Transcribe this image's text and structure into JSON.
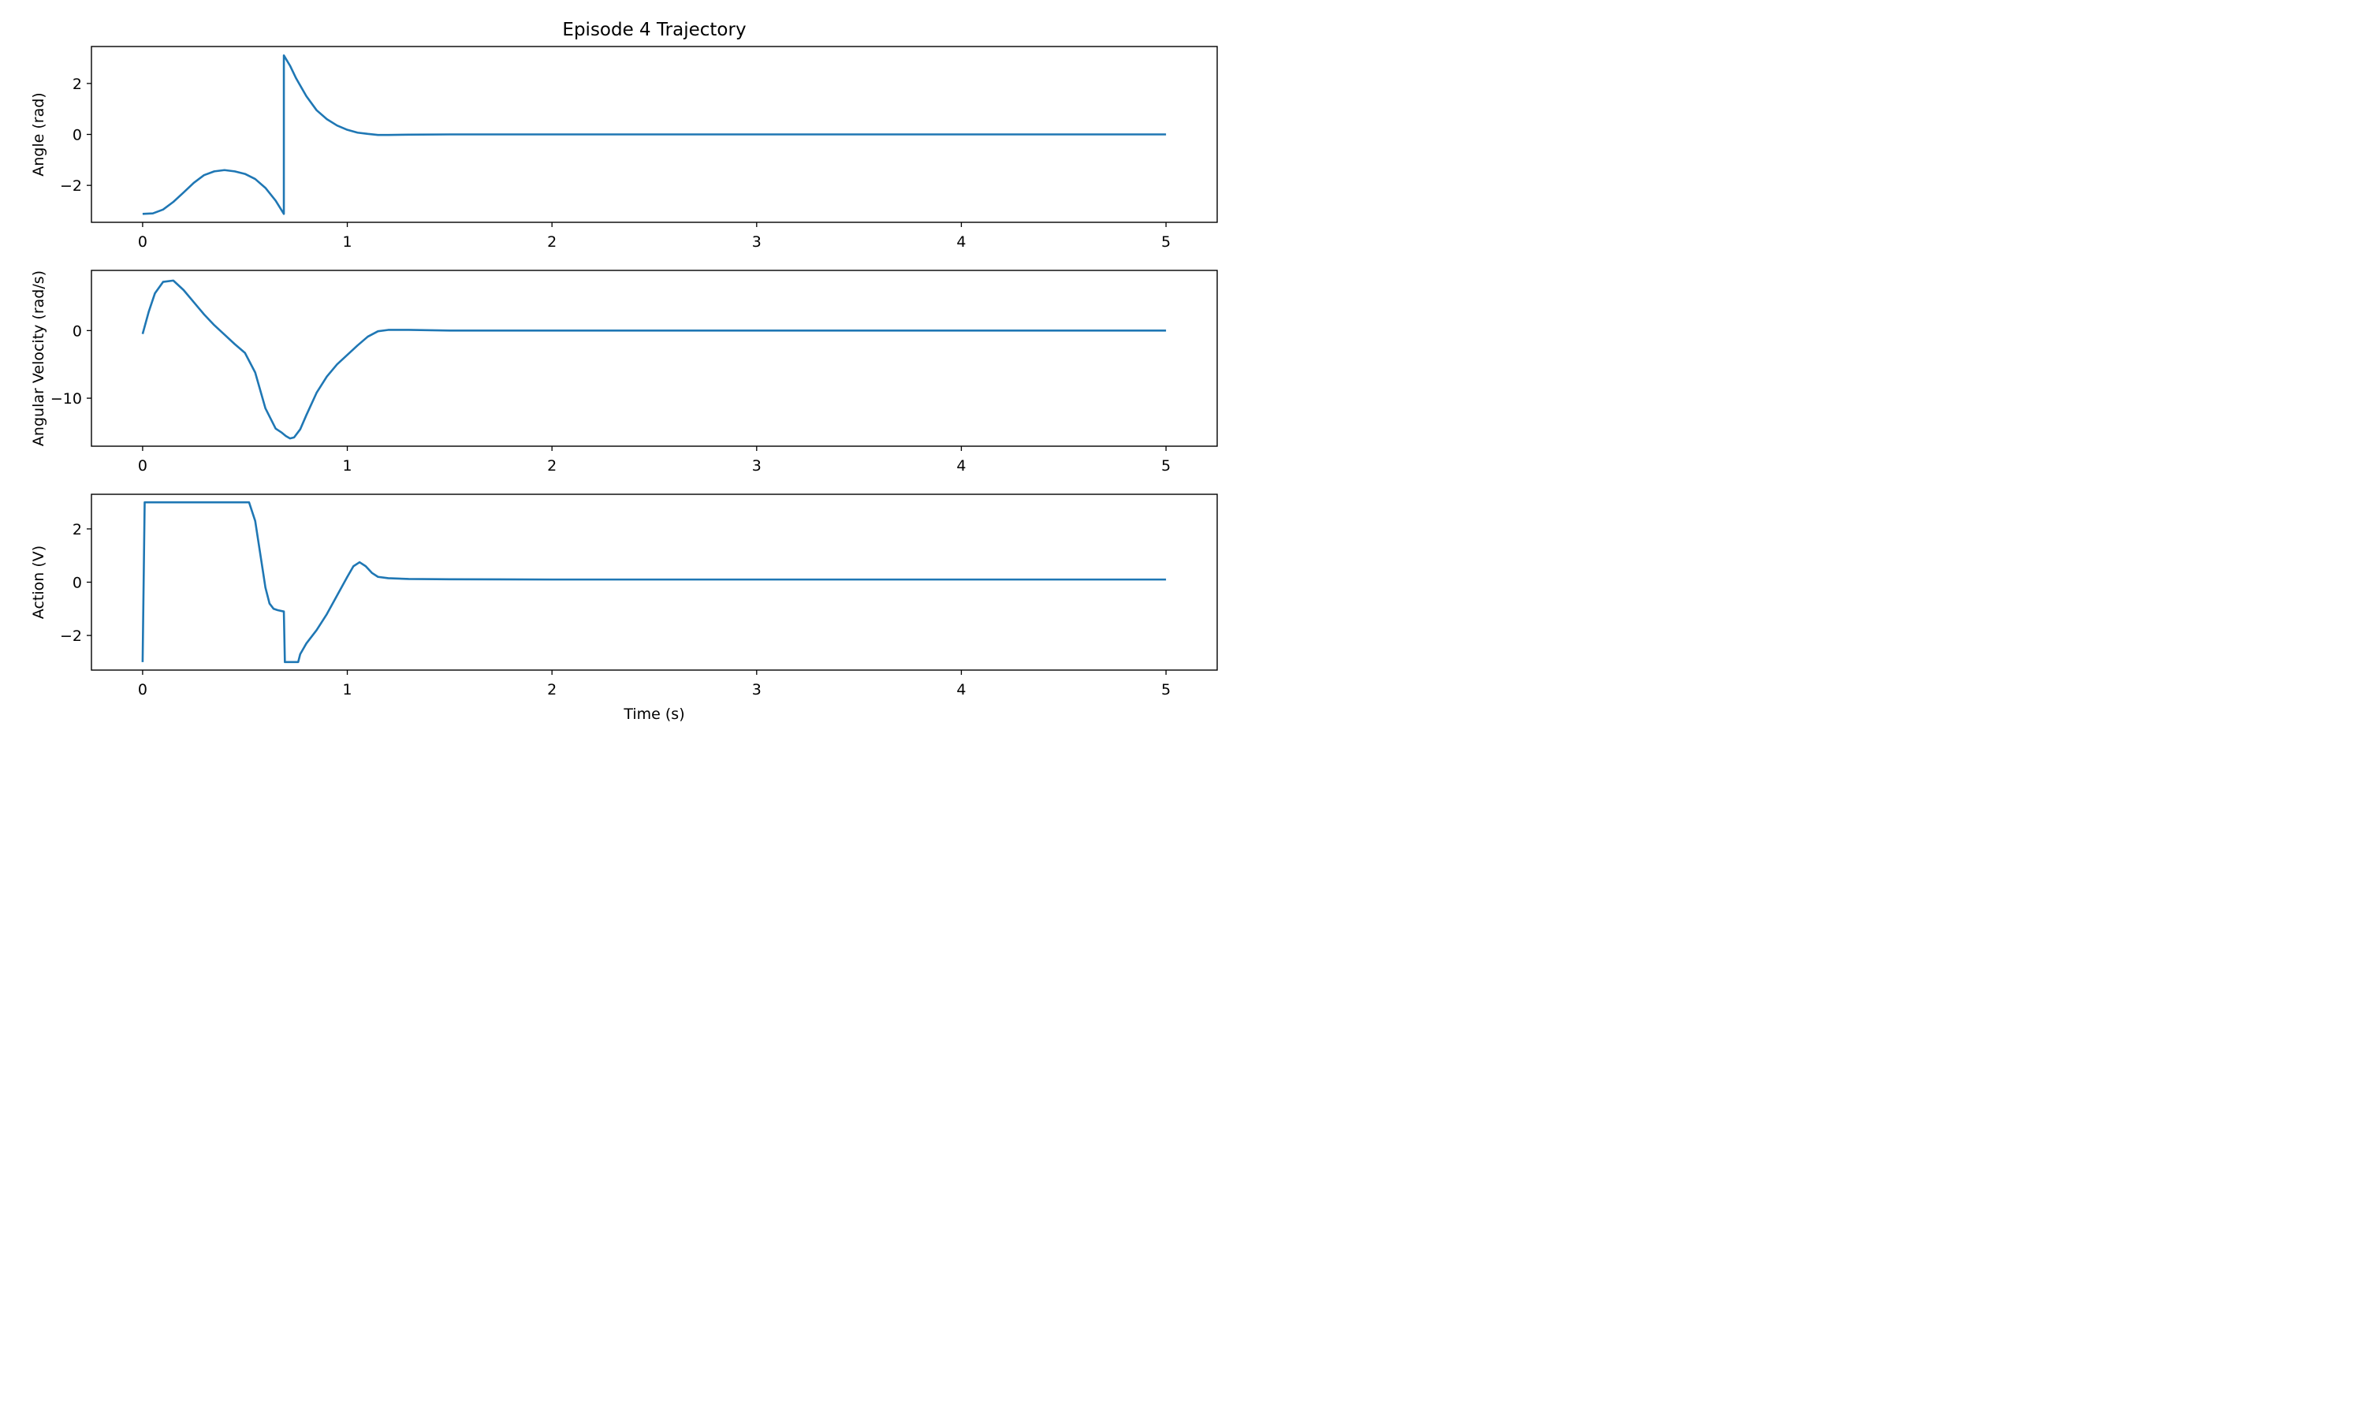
{
  "chart_data": {
    "type": "line",
    "title": "Episode 4 Trajectory",
    "xlabel": "Time (s)",
    "line_color": "#1f77b4",
    "subplots": [
      {
        "id": "angle",
        "ylabel": "Angle (rad)",
        "xlim": [
          -0.25,
          5.25
        ],
        "ylim": [
          -3.45,
          3.45
        ],
        "x_ticks": [
          0,
          1,
          2,
          3,
          4,
          5
        ],
        "x_tick_labels": [
          "0",
          "1",
          "2",
          "3",
          "4",
          "5"
        ],
        "y_ticks": [
          -2,
          0,
          2
        ],
        "y_tick_labels": [
          "−2",
          "0",
          "2"
        ],
        "series": [
          {
            "name": "Angle",
            "x": [
              0,
              0.05,
              0.1,
              0.15,
              0.2,
              0.25,
              0.3,
              0.35,
              0.4,
              0.45,
              0.5,
              0.55,
              0.6,
              0.65,
              0.69,
              0.6901,
              0.72,
              0.75,
              0.8,
              0.85,
              0.9,
              0.95,
              1.0,
              1.05,
              1.1,
              1.15,
              1.2,
              1.3,
              1.5,
              2,
              3,
              4,
              5
            ],
            "y": [
              -3.12,
              -3.1,
              -2.95,
              -2.65,
              -2.28,
              -1.9,
              -1.6,
              -1.45,
              -1.4,
              -1.45,
              -1.55,
              -1.75,
              -2.1,
              -2.6,
              -3.12,
              3.1,
              2.7,
              2.2,
              1.5,
              0.95,
              0.6,
              0.35,
              0.18,
              0.07,
              0.02,
              -0.02,
              -0.02,
              -0.01,
              0,
              0,
              0,
              0,
              0
            ]
          }
        ]
      },
      {
        "id": "angular-velocity",
        "ylabel": "Angular Velocity (rad/s)",
        "xlim": [
          -0.25,
          5.25
        ],
        "ylim": [
          -17.1,
          8.9
        ],
        "x_ticks": [
          0,
          1,
          2,
          3,
          4,
          5
        ],
        "x_tick_labels": [
          "0",
          "1",
          "2",
          "3",
          "4",
          "5"
        ],
        "y_ticks": [
          -10,
          0
        ],
        "y_tick_labels": [
          "−10",
          "0"
        ],
        "series": [
          {
            "name": "Angular Velocity",
            "x": [
              0,
              0.03,
              0.06,
              0.1,
              0.15,
              0.2,
              0.25,
              0.3,
              0.35,
              0.4,
              0.45,
              0.5,
              0.55,
              0.6,
              0.65,
              0.68,
              0.7,
              0.72,
              0.74,
              0.77,
              0.8,
              0.85,
              0.9,
              0.95,
              1.0,
              1.05,
              1.1,
              1.15,
              1.2,
              1.3,
              1.5,
              2,
              3,
              4,
              5
            ],
            "y": [
              -0.5,
              2.8,
              5.5,
              7.2,
              7.4,
              6.0,
              4.2,
              2.4,
              0.8,
              -0.6,
              -2.0,
              -3.3,
              -6.2,
              -11.5,
              -14.5,
              -15.1,
              -15.6,
              -15.95,
              -15.8,
              -14.6,
              -12.5,
              -9.2,
              -6.8,
              -5.0,
              -3.6,
              -2.2,
              -0.9,
              -0.1,
              0.1,
              0.1,
              0,
              0,
              0,
              0,
              0
            ]
          }
        ]
      },
      {
        "id": "action",
        "ylabel": "Action (V)",
        "xlim": [
          -0.25,
          5.25
        ],
        "ylim": [
          -3.3,
          3.3
        ],
        "x_ticks": [
          0,
          1,
          2,
          3,
          4,
          5
        ],
        "x_tick_labels": [
          "0",
          "1",
          "2",
          "3",
          "4",
          "5"
        ],
        "y_ticks": [
          -2,
          0,
          2
        ],
        "y_tick_labels": [
          "−2",
          "0",
          "2"
        ],
        "series": [
          {
            "name": "Action",
            "x": [
              0,
              0.01,
              0.5,
              0.52,
              0.55,
              0.58,
              0.6,
              0.62,
              0.64,
              0.66,
              0.69,
              0.695,
              0.7,
              0.76,
              0.77,
              0.8,
              0.85,
              0.9,
              0.95,
              1.0,
              1.03,
              1.06,
              1.09,
              1.12,
              1.15,
              1.2,
              1.3,
              1.5,
              2,
              3,
              4,
              5
            ],
            "y": [
              -3.0,
              3.0,
              3.0,
              3.0,
              2.3,
              0.8,
              -0.2,
              -0.8,
              -1.0,
              -1.05,
              -1.1,
              -3.0,
              -3.0,
              -3.0,
              -2.7,
              -2.3,
              -1.8,
              -1.2,
              -0.5,
              0.2,
              0.6,
              0.75,
              0.6,
              0.35,
              0.2,
              0.15,
              0.12,
              0.11,
              0.1,
              0.1,
              0.1,
              0.1
            ]
          }
        ]
      }
    ]
  }
}
